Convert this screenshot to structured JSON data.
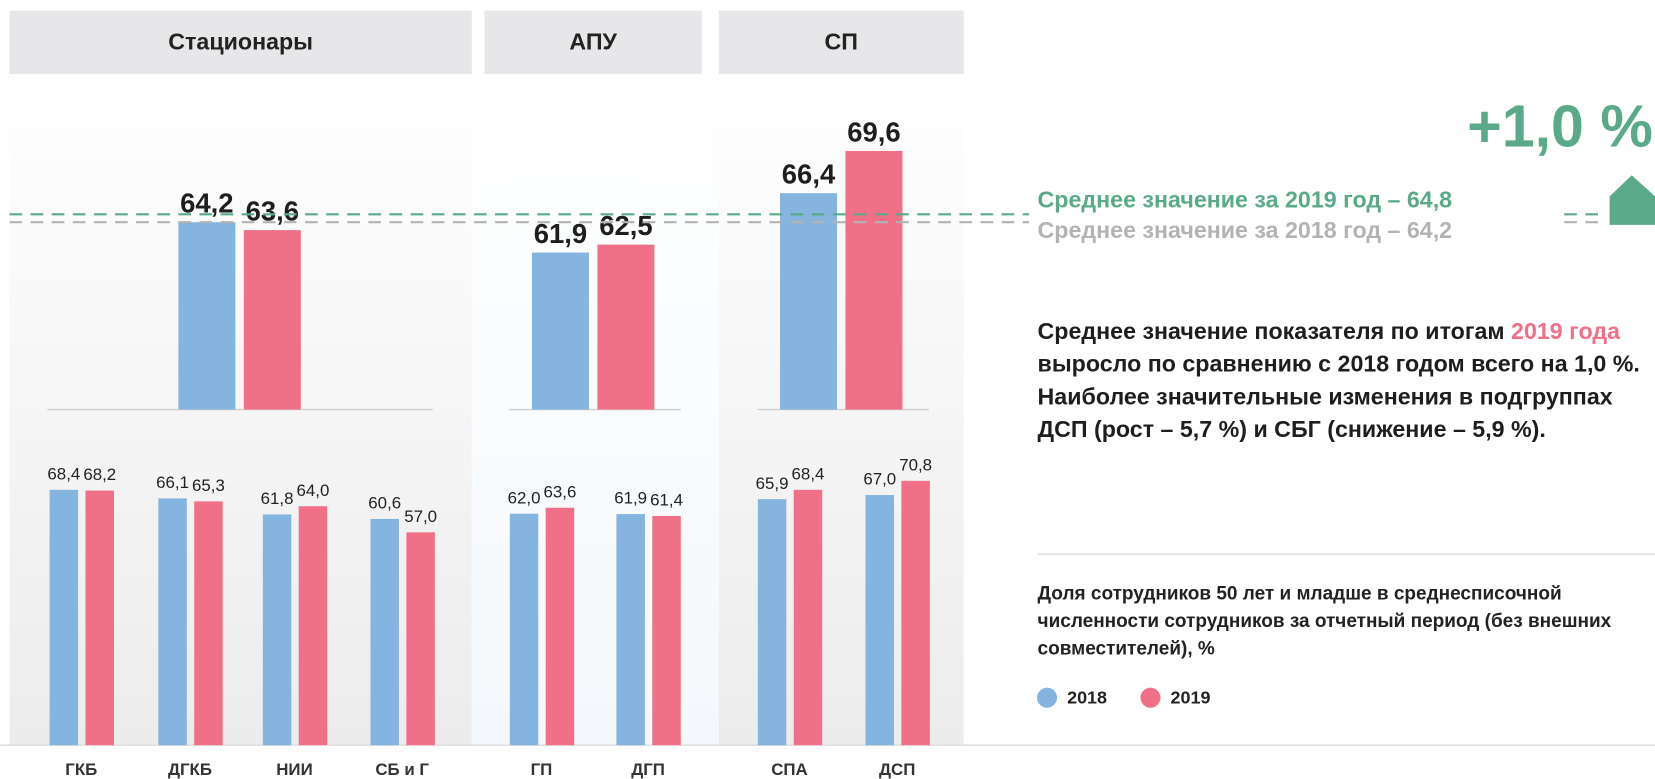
{
  "chart_data": {
    "type": "bar",
    "series": [
      {
        "name": "2018",
        "color": "#85b4de"
      },
      {
        "name": "2019",
        "color": "#f07088"
      }
    ],
    "summary_ylim": [
      50,
      72
    ],
    "ylim": [
      0,
      80
    ],
    "groups": [
      {
        "name": "Стационары",
        "summary": [
          64.2,
          63.6
        ],
        "summary_labels": [
          "64,2",
          "63,6"
        ],
        "categories": [
          "ГКБ",
          "ДГКБ",
          "НИИ",
          "СБ и Г"
        ],
        "values": [
          [
            68.4,
            68.2
          ],
          [
            66.1,
            65.3
          ],
          [
            61.8,
            64.0
          ],
          [
            60.6,
            57.0
          ]
        ],
        "value_labels": [
          [
            "68,4",
            "68,2"
          ],
          [
            "66,1",
            "65,3"
          ],
          [
            "61,8",
            "64,0"
          ],
          [
            "60,6",
            "57,0"
          ]
        ]
      },
      {
        "name": "АПУ",
        "summary": [
          61.9,
          62.5
        ],
        "summary_labels": [
          "61,9",
          "62,5"
        ],
        "categories": [
          "ГП",
          "ДГП"
        ],
        "values": [
          [
            62.0,
            63.6
          ],
          [
            61.9,
            61.4
          ]
        ],
        "value_labels": [
          [
            "62,0",
            "63,6"
          ],
          [
            "61,9",
            "61,4"
          ]
        ]
      },
      {
        "name": "СП",
        "summary": [
          66.4,
          69.6
        ],
        "summary_labels": [
          "66,4",
          "69,6"
        ],
        "categories": [
          "СПА",
          "ДСП"
        ],
        "values": [
          [
            65.9,
            68.4
          ],
          [
            67.0,
            70.8
          ]
        ],
        "value_labels": [
          [
            "65,9",
            "68,4"
          ],
          [
            "67,0",
            "70,8"
          ]
        ]
      }
    ],
    "averages": [
      {
        "text": "Среднее значение за 2019 год – ",
        "value": 64.8,
        "label": "64,8",
        "color": "#5aaa8a"
      },
      {
        "text": "Среднее значение за 2018 год – ",
        "value": 64.2,
        "label": "64,2",
        "color": "#b3b3b3"
      }
    ],
    "change": "+1,0 %",
    "change_color": "#5aaa8a",
    "summary_text": [
      "Среднее значение показателя по итогам ",
      "2019 года",
      " выросло по сравнению с 2018 годом всего на 1,0 %. Наиболее значитель­ные изменения в подгруппах ДСП (рост – 5,7 %) и СБГ (снижение – 5,9 %)."
    ],
    "highlight_color": "#f07088",
    "description": "Доля сотрудников 50 лет и младше в средне­списочной численности сотрудников за отчетный период (без внешних совместителей), %"
  }
}
